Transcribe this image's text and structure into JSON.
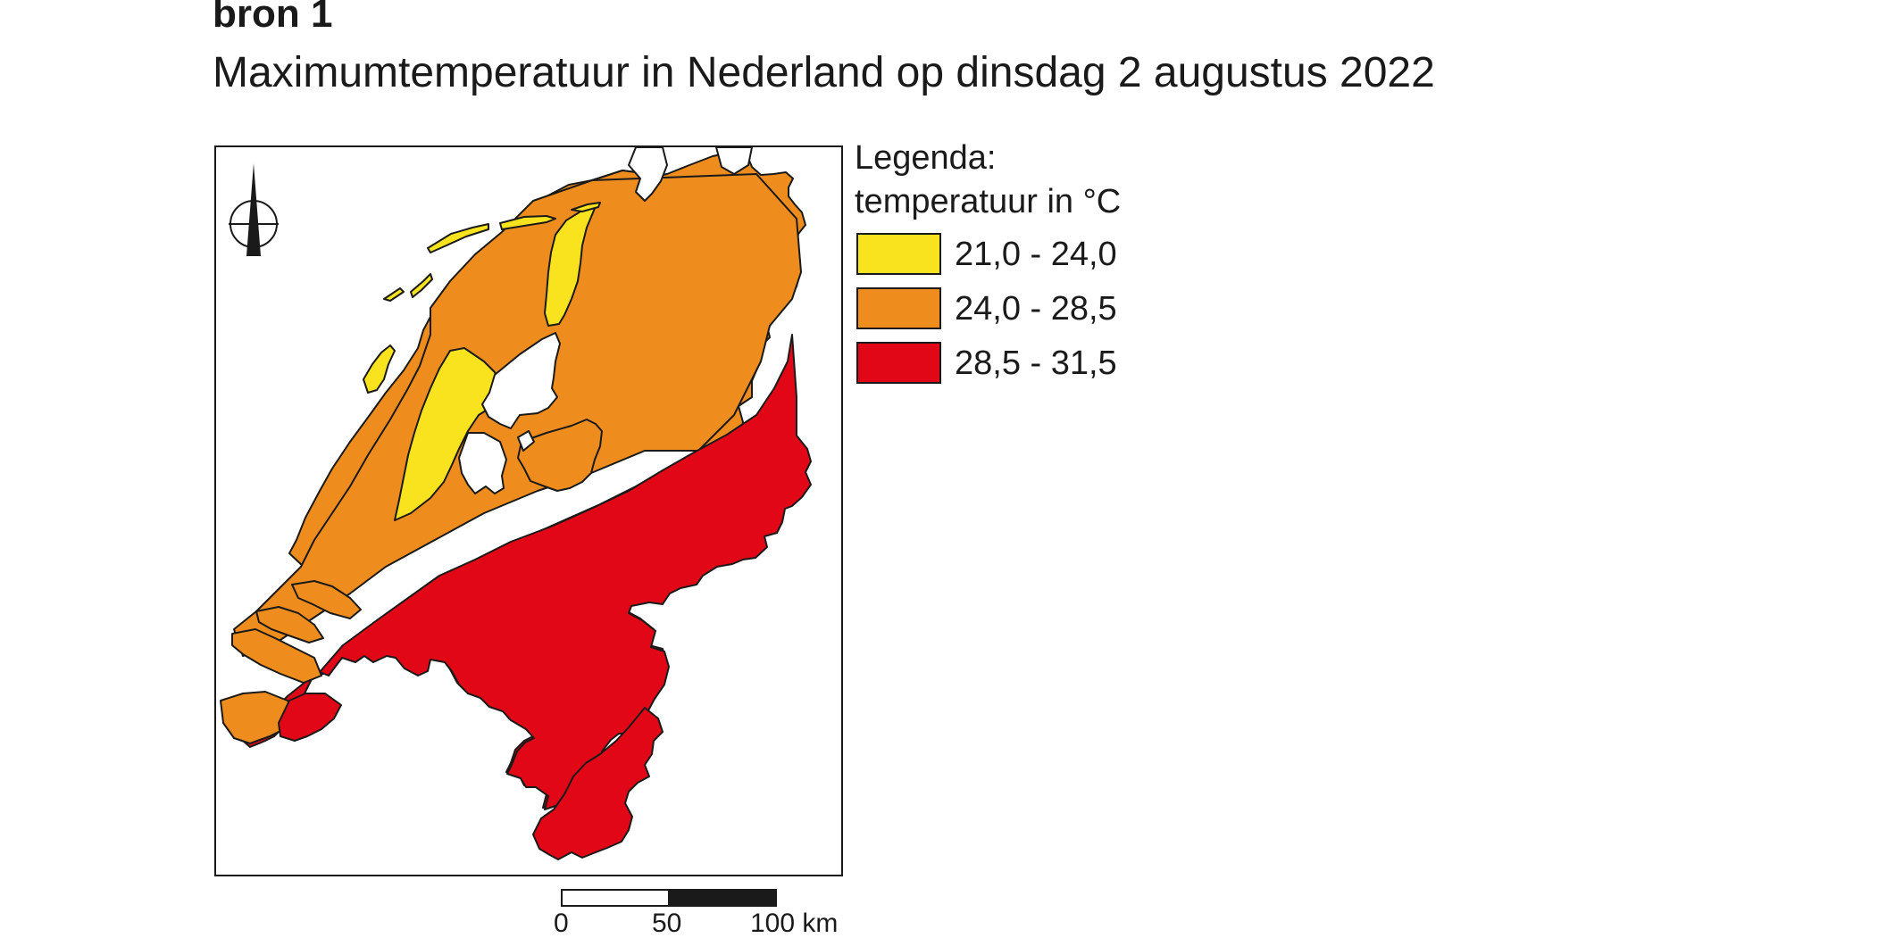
{
  "header": {
    "source_label": "bron 1",
    "title": "Maximumtemperatuur in Nederland op dinsdag 2 augustus 2022"
  },
  "legend": {
    "heading": "Legenda:",
    "subheading": "temperatuur in °C",
    "classes": [
      {
        "label": "21,0 - 24,0",
        "color": "#f9e31e"
      },
      {
        "label": "24,0 - 28,5",
        "color": "#ee8c1e"
      },
      {
        "label": "28,5 - 31,5",
        "color": "#e20716"
      }
    ]
  },
  "scale_bar": {
    "ticks": [
      "0",
      "50",
      "100 km"
    ]
  },
  "map": {
    "north_arrow": "north-arrow-icon",
    "water_color": "#ffffff",
    "outline_color": "#1a1a1a"
  }
}
